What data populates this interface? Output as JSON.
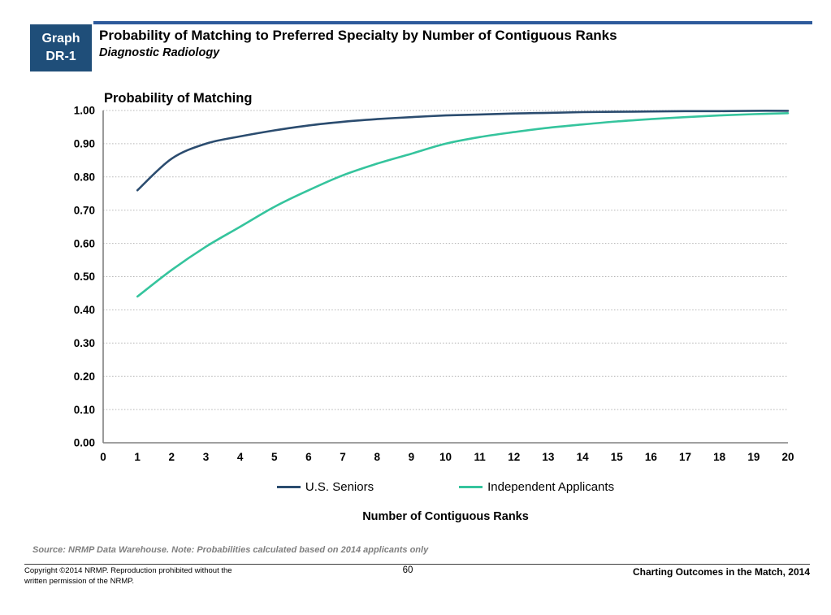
{
  "header": {
    "badge_line1": "Graph",
    "badge_line2": "DR-1",
    "title": "Probability of Matching to Preferred Specialty by Number of Contiguous Ranks",
    "subtitle": "Diagnostic Radiology"
  },
  "chart_data": {
    "type": "line",
    "title": "Probability of Matching",
    "xlabel": "Number of Contiguous Ranks",
    "ylabel": "Probability of Matching",
    "xlim": [
      0,
      20
    ],
    "ylim": [
      0,
      1
    ],
    "x_ticks": [
      0,
      1,
      2,
      3,
      4,
      5,
      6,
      7,
      8,
      9,
      10,
      11,
      12,
      13,
      14,
      15,
      16,
      17,
      18,
      19,
      20
    ],
    "y_tick_labels": [
      "0.00",
      "0.10",
      "0.20",
      "0.30",
      "0.40",
      "0.50",
      "0.60",
      "0.70",
      "0.80",
      "0.90",
      "1.00"
    ],
    "grid": "horizontal-dotted",
    "legend_position": "bottom",
    "x": [
      1,
      2,
      3,
      4,
      5,
      6,
      7,
      8,
      9,
      10,
      11,
      12,
      13,
      14,
      15,
      16,
      17,
      18,
      19,
      20
    ],
    "series": [
      {
        "name": "U.S. Seniors",
        "color": "#2B4C6F",
        "values": [
          0.76,
          0.855,
          0.9,
          0.922,
          0.94,
          0.955,
          0.966,
          0.974,
          0.98,
          0.985,
          0.988,
          0.991,
          0.993,
          0.995,
          0.996,
          0.997,
          0.998,
          0.998,
          0.999,
          0.999
        ]
      },
      {
        "name": "Independent Applicants",
        "color": "#35C49D",
        "values": [
          0.44,
          0.52,
          0.59,
          0.65,
          0.71,
          0.76,
          0.805,
          0.84,
          0.87,
          0.9,
          0.92,
          0.935,
          0.948,
          0.958,
          0.967,
          0.974,
          0.98,
          0.985,
          0.989,
          0.992
        ]
      }
    ]
  },
  "source_note": "Source: NRMP Data Warehouse. Note: Probabilities calculated based on 2014 applicants only",
  "footer": {
    "copyright_line1": "Copyright ©2014 NRMP. Reproduction prohibited without the",
    "copyright_line2": "written permission of the NRMP.",
    "page_number": "60",
    "publication": "Charting Outcomes in the Match, 2014"
  },
  "colors": {
    "badge_bg": "#1F4E79",
    "top_rule": "#2D5A9B",
    "gridline": "#B3B3B3",
    "axis": "#808080",
    "tick_label": "#000000",
    "source_note": "#7F7F7F"
  }
}
